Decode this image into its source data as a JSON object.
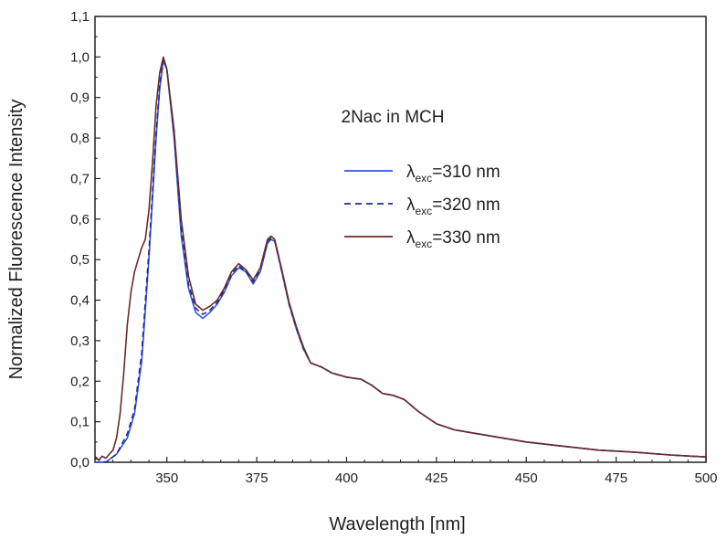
{
  "chart_data": {
    "type": "line",
    "title": "",
    "annotation": "2Nac in MCH",
    "xlabel": "Wavelength [nm]",
    "ylabel": "Normalized Fluorescence Intensity",
    "xlim": [
      330,
      500
    ],
    "ylim": [
      0,
      1.1
    ],
    "xticks": [
      350,
      375,
      400,
      425,
      450,
      475,
      500
    ],
    "xtick_labels": [
      "350",
      "375",
      "400",
      "425",
      "450",
      "475",
      "500"
    ],
    "yticks": [
      0,
      0.1,
      0.2,
      0.3,
      0.4,
      0.5,
      0.6,
      0.7,
      0.8,
      0.9,
      1.0,
      1.1
    ],
    "ytick_labels": [
      "0,0",
      "0,1",
      "0,2",
      "0,3",
      "0,4",
      "0,5",
      "0,6",
      "0,7",
      "0,8",
      "0,9",
      "1,0",
      "1,1"
    ],
    "legend_position": "right",
    "series": [
      {
        "name": "λexc=310 nm",
        "label_main": "λ",
        "label_sub": "exc",
        "label_rest": "=310 nm",
        "color": "#3355dd",
        "dash": "solid",
        "x": [
          330,
          333,
          336,
          339,
          341,
          343,
          345,
          347,
          348,
          349,
          350,
          352,
          354,
          356,
          358,
          360,
          362,
          364,
          366,
          368,
          370,
          372,
          374,
          376,
          378,
          379,
          380,
          382,
          384,
          386,
          388,
          390,
          393,
          396,
          400,
          404,
          407,
          410,
          413,
          416,
          420,
          425,
          430,
          440,
          450,
          460,
          470,
          480,
          490,
          500
        ],
        "y": [
          0.0,
          0.0,
          0.02,
          0.06,
          0.12,
          0.25,
          0.5,
          0.8,
          0.92,
          0.99,
          0.97,
          0.8,
          0.56,
          0.43,
          0.37,
          0.355,
          0.37,
          0.39,
          0.42,
          0.46,
          0.48,
          0.47,
          0.44,
          0.47,
          0.54,
          0.55,
          0.545,
          0.47,
          0.39,
          0.33,
          0.28,
          0.245,
          0.235,
          0.22,
          0.21,
          0.205,
          0.19,
          0.17,
          0.165,
          0.155,
          0.125,
          0.095,
          0.08,
          0.065,
          0.05,
          0.04,
          0.03,
          0.025,
          0.018,
          0.013
        ]
      },
      {
        "name": "λexc=320 nm",
        "label_main": "λ",
        "label_sub": "exc",
        "label_rest": "=320 nm",
        "color": "#1a2f8a",
        "dash": "dashed",
        "x": [
          330,
          333,
          336,
          339,
          341,
          343,
          345,
          347,
          348,
          349,
          350,
          352,
          354,
          356,
          358,
          360,
          362,
          364,
          366,
          368,
          370,
          372,
          374,
          376,
          378,
          379,
          380,
          382,
          384,
          386,
          388,
          390,
          393,
          396,
          400,
          404,
          407,
          410,
          413,
          416,
          420,
          425,
          430,
          440,
          450,
          460,
          470,
          480,
          490,
          500
        ],
        "y": [
          0.01,
          0.0,
          0.02,
          0.07,
          0.13,
          0.27,
          0.52,
          0.81,
          0.93,
          0.995,
          0.97,
          0.81,
          0.58,
          0.44,
          0.38,
          0.365,
          0.375,
          0.395,
          0.425,
          0.465,
          0.485,
          0.47,
          0.445,
          0.475,
          0.545,
          0.553,
          0.547,
          0.47,
          0.39,
          0.33,
          0.28,
          0.245,
          0.235,
          0.22,
          0.21,
          0.205,
          0.19,
          0.17,
          0.165,
          0.155,
          0.125,
          0.095,
          0.08,
          0.065,
          0.05,
          0.04,
          0.03,
          0.025,
          0.018,
          0.013
        ]
      },
      {
        "name": "λexc=330 nm",
        "label_main": "λ",
        "label_sub": "exc",
        "label_rest": "=330 nm",
        "color": "#6b2a2a",
        "dash": "solid",
        "x": [
          330,
          331,
          332,
          333,
          334,
          335,
          336,
          337,
          338,
          339,
          340,
          341,
          342,
          343,
          344,
          345,
          346,
          347,
          348,
          349,
          350,
          352,
          354,
          356,
          358,
          360,
          362,
          364,
          366,
          368,
          370,
          372,
          374,
          376,
          378,
          379,
          380,
          382,
          384,
          386,
          388,
          390,
          393,
          396,
          400,
          404,
          407,
          410,
          413,
          416,
          420,
          425,
          430,
          440,
          450,
          460,
          470,
          480,
          490,
          500
        ],
        "y": [
          0.015,
          0.005,
          0.015,
          0.01,
          0.02,
          0.03,
          0.06,
          0.12,
          0.22,
          0.34,
          0.42,
          0.47,
          0.5,
          0.53,
          0.55,
          0.62,
          0.74,
          0.88,
          0.96,
          1.0,
          0.97,
          0.82,
          0.6,
          0.46,
          0.39,
          0.375,
          0.385,
          0.4,
          0.43,
          0.47,
          0.49,
          0.475,
          0.45,
          0.48,
          0.55,
          0.558,
          0.55,
          0.475,
          0.395,
          0.335,
          0.285,
          0.245,
          0.235,
          0.22,
          0.21,
          0.205,
          0.19,
          0.17,
          0.165,
          0.155,
          0.125,
          0.095,
          0.08,
          0.065,
          0.05,
          0.04,
          0.03,
          0.025,
          0.018,
          0.013
        ]
      }
    ]
  }
}
